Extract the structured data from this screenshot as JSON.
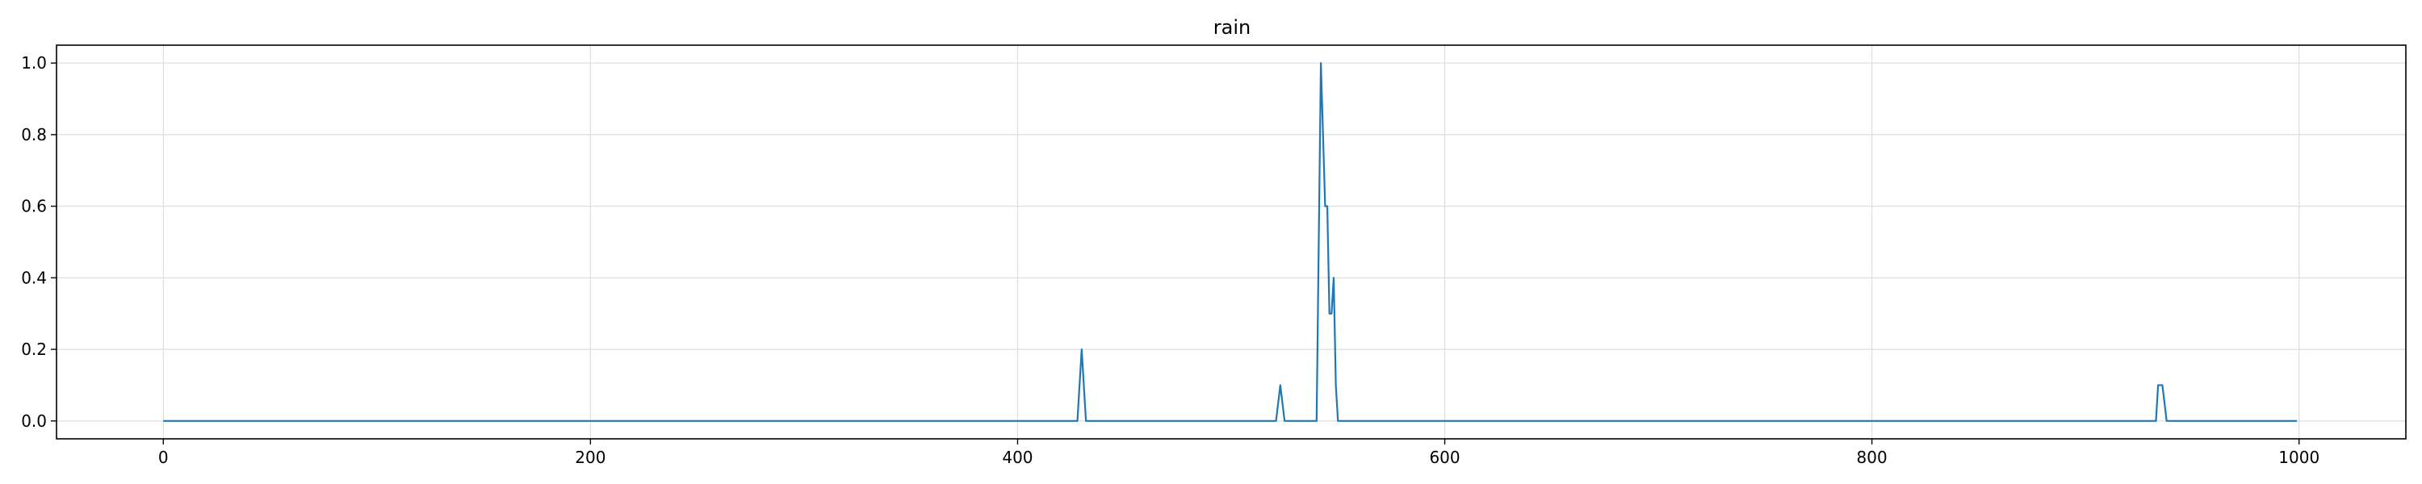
{
  "chart_data": {
    "type": "line",
    "title": "rain",
    "xlabel": "",
    "ylabel": "",
    "xlim": [
      -50,
      1050
    ],
    "ylim": [
      -0.05,
      1.05
    ],
    "xticks": [
      0,
      200,
      400,
      600,
      800,
      1000
    ],
    "xtick_labels": [
      "0",
      "200",
      "400",
      "600",
      "800",
      "1000"
    ],
    "yticks": [
      0.0,
      0.2,
      0.4,
      0.6,
      0.8,
      1.0
    ],
    "ytick_labels": [
      "0.0",
      "0.2",
      "0.4",
      "0.6",
      "0.8",
      "1.0"
    ],
    "grid": true,
    "line_color": "#1f77b4",
    "series": [
      {
        "x": [
          0,
          428,
          430,
          432,
          521,
          523,
          525,
          540,
          542,
          544,
          545,
          546,
          547,
          548,
          549,
          550,
          999,
          933,
          934,
          936,
          938
        ],
        "y": [
          0.0,
          0.0,
          0.2,
          0.0,
          0.0,
          0.1,
          0.0,
          0.0,
          1.0,
          0.6,
          0.6,
          0.3,
          0.3,
          0.4,
          0.1,
          0.0,
          0.0,
          0.0,
          0.1,
          0.1,
          0.0
        ]
      }
    ]
  }
}
